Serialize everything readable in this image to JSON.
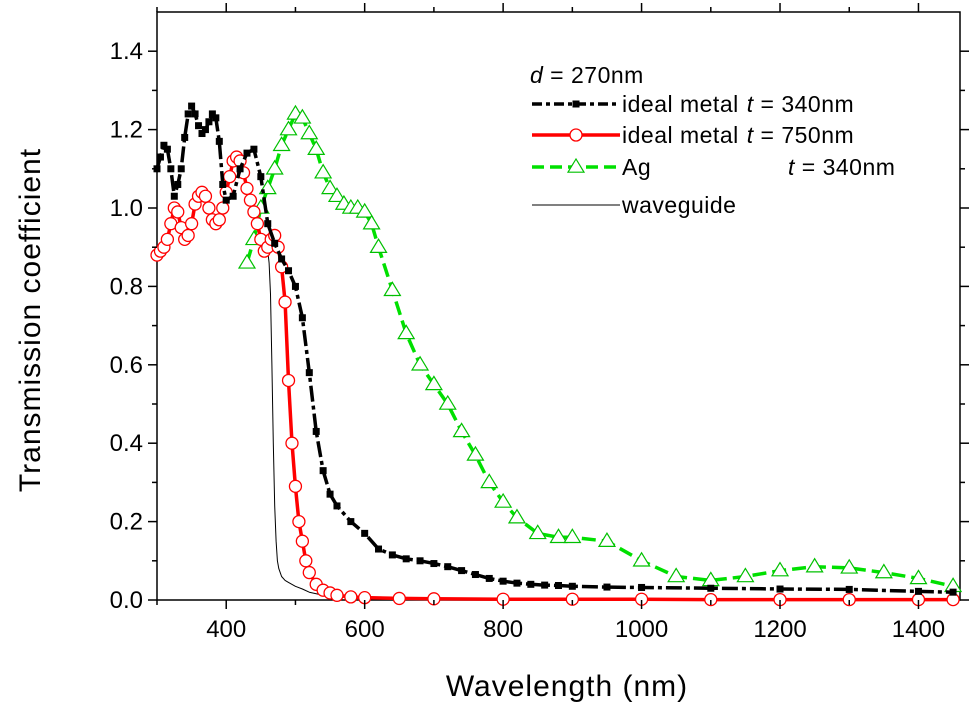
{
  "chart_data": {
    "type": "line",
    "xlabel": "Wavelength (nm)",
    "ylabel": "Transmission coefficient",
    "xlim": [
      300,
      1460
    ],
    "ylim": [
      0,
      1.5
    ],
    "xticks": [
      "400",
      "600",
      "800",
      "1000",
      "1200",
      "1400"
    ],
    "yticks": [
      "0.0",
      "0.2",
      "0.4",
      "0.6",
      "0.8",
      "1.0",
      "1.2",
      "1.4"
    ],
    "grid": false,
    "legend_placement": "top-right",
    "legend_title": {
      "var": "d",
      "rest": " = 270nm"
    },
    "series": [
      {
        "name": "ideal metal",
        "param": "t",
        "param_value": " = 340nm",
        "color": "#000000",
        "marker": "square-filled",
        "line": "dash-dot",
        "x": [
          300,
          305,
          310,
          315,
          320,
          325,
          330,
          335,
          340,
          345,
          350,
          355,
          360,
          365,
          370,
          375,
          380,
          385,
          390,
          395,
          400,
          410,
          420,
          430,
          440,
          450,
          460,
          470,
          480,
          490,
          500,
          510,
          520,
          530,
          540,
          550,
          560,
          580,
          600,
          620,
          640,
          660,
          680,
          700,
          720,
          740,
          760,
          780,
          800,
          820,
          840,
          860,
          880,
          900,
          950,
          1000,
          1100,
          1200,
          1300,
          1400,
          1450
        ],
        "y": [
          1.1,
          1.13,
          1.16,
          1.15,
          1.1,
          1.03,
          1.06,
          1.1,
          1.18,
          1.24,
          1.26,
          1.24,
          1.21,
          1.19,
          1.2,
          1.22,
          1.24,
          1.23,
          1.17,
          1.06,
          1.02,
          1.03,
          1.1,
          1.14,
          1.15,
          1.08,
          0.96,
          0.91,
          0.87,
          0.84,
          0.8,
          0.72,
          0.58,
          0.43,
          0.33,
          0.27,
          0.24,
          0.2,
          0.17,
          0.13,
          0.115,
          0.105,
          0.1,
          0.093,
          0.085,
          0.075,
          0.065,
          0.055,
          0.048,
          0.043,
          0.04,
          0.038,
          0.037,
          0.035,
          0.033,
          0.032,
          0.03,
          0.028,
          0.027,
          0.022,
          0.02
        ]
      },
      {
        "name": "ideal metal",
        "param": "t",
        "param_value": " = 750nm",
        "color": "#ff0000",
        "marker": "circle-open",
        "line": "solid",
        "x": [
          300,
          305,
          310,
          315,
          320,
          325,
          330,
          335,
          340,
          345,
          350,
          355,
          360,
          365,
          370,
          375,
          380,
          385,
          390,
          395,
          400,
          405,
          410,
          415,
          420,
          425,
          430,
          435,
          440,
          445,
          450,
          455,
          460,
          465,
          470,
          475,
          480,
          485,
          490,
          495,
          500,
          505,
          510,
          515,
          520,
          530,
          540,
          550,
          560,
          580,
          600,
          650,
          700,
          800,
          900,
          1000,
          1100,
          1200,
          1300,
          1400,
          1450
        ],
        "y": [
          0.88,
          0.89,
          0.9,
          0.92,
          0.96,
          1.0,
          0.99,
          0.95,
          0.92,
          0.93,
          0.96,
          1.01,
          1.03,
          1.04,
          1.03,
          1.0,
          0.97,
          0.96,
          0.97,
          1.0,
          1.04,
          1.08,
          1.12,
          1.13,
          1.12,
          1.09,
          1.05,
          1.02,
          0.99,
          0.96,
          0.92,
          0.89,
          0.9,
          0.92,
          0.93,
          0.9,
          0.85,
          0.76,
          0.56,
          0.4,
          0.29,
          0.2,
          0.15,
          0.1,
          0.07,
          0.04,
          0.025,
          0.018,
          0.012,
          0.008,
          0.006,
          0.004,
          0.003,
          0.002,
          0.002,
          0.002,
          0.001,
          0.001,
          0.001,
          0.001,
          0.001
        ]
      },
      {
        "name": "Ag",
        "param": "t",
        "param_value": " = 340nm",
        "color": "#00e000",
        "marker": "triangle-open",
        "line": "dash",
        "x": [
          430,
          440,
          450,
          460,
          470,
          480,
          490,
          500,
          510,
          520,
          530,
          540,
          550,
          560,
          570,
          580,
          590,
          600,
          610,
          620,
          640,
          660,
          680,
          700,
          720,
          740,
          760,
          780,
          800,
          820,
          850,
          880,
          900,
          950,
          1000,
          1050,
          1100,
          1150,
          1200,
          1250,
          1300,
          1350,
          1400,
          1450
        ],
        "y": [
          0.86,
          0.92,
          1.0,
          1.05,
          1.1,
          1.16,
          1.2,
          1.24,
          1.23,
          1.19,
          1.15,
          1.09,
          1.05,
          1.03,
          1.01,
          1.0,
          1.0,
          0.99,
          0.96,
          0.9,
          0.79,
          0.68,
          0.6,
          0.55,
          0.5,
          0.43,
          0.37,
          0.3,
          0.25,
          0.21,
          0.17,
          0.16,
          0.16,
          0.15,
          0.1,
          0.06,
          0.05,
          0.06,
          0.075,
          0.085,
          0.082,
          0.07,
          0.055,
          0.035
        ]
      },
      {
        "name": "waveguide",
        "color": "#000000",
        "marker": "none",
        "line": "thin-solid",
        "x": [
          450,
          455,
          458,
          460,
          462,
          464,
          466,
          468,
          470,
          472,
          474,
          476,
          478,
          480,
          485,
          490,
          500,
          510,
          520,
          540,
          560,
          600,
          700,
          800,
          1000,
          1200,
          1450
        ],
        "y": [
          0.9,
          0.9,
          0.9,
          0.89,
          0.86,
          0.78,
          0.6,
          0.4,
          0.24,
          0.15,
          0.1,
          0.08,
          0.07,
          0.06,
          0.05,
          0.045,
          0.035,
          0.028,
          0.02,
          0.012,
          0.008,
          0.004,
          0.002,
          0.001,
          0.001,
          0.0,
          0.0
        ]
      }
    ]
  }
}
